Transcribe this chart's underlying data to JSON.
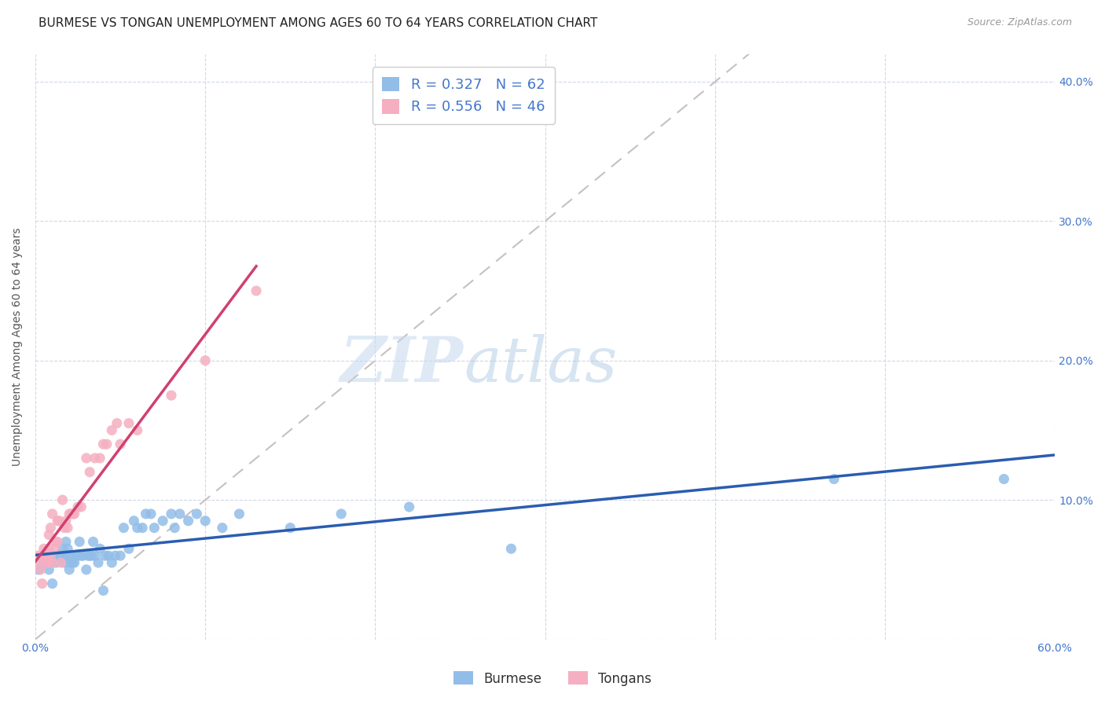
{
  "title": "BURMESE VS TONGAN UNEMPLOYMENT AMONG AGES 60 TO 64 YEARS CORRELATION CHART",
  "source": "Source: ZipAtlas.com",
  "ylabel": "Unemployment Among Ages 60 to 64 years",
  "xlim": [
    0.0,
    0.6
  ],
  "ylim": [
    0.0,
    0.42
  ],
  "xticks": [
    0.0,
    0.1,
    0.2,
    0.3,
    0.4,
    0.5,
    0.6
  ],
  "xticklabels": [
    "0.0%",
    "",
    "",
    "",
    "",
    "",
    "60.0%"
  ],
  "yticks": [
    0.0,
    0.1,
    0.2,
    0.3,
    0.4
  ],
  "yticklabels_right": [
    "",
    "10.0%",
    "20.0%",
    "30.0%",
    "40.0%"
  ],
  "burmese_color": "#92bde8",
  "tongan_color": "#f5afc0",
  "burmese_line_color": "#2a5db0",
  "tongan_line_color": "#d04070",
  "diagonal_color": "#c8c0c0",
  "R_burmese": 0.327,
  "N_burmese": 62,
  "R_tongan": 0.556,
  "N_tongan": 46,
  "watermark_zip": "ZIP",
  "watermark_atlas": "atlas",
  "burmese_x": [
    0.002,
    0.005,
    0.007,
    0.008,
    0.01,
    0.01,
    0.012,
    0.013,
    0.015,
    0.015,
    0.016,
    0.017,
    0.018,
    0.018,
    0.019,
    0.02,
    0.02,
    0.021,
    0.022,
    0.023,
    0.024,
    0.025,
    0.026,
    0.027,
    0.028,
    0.03,
    0.031,
    0.032,
    0.033,
    0.034,
    0.035,
    0.037,
    0.038,
    0.04,
    0.041,
    0.043,
    0.045,
    0.047,
    0.05,
    0.052,
    0.055,
    0.058,
    0.06,
    0.063,
    0.065,
    0.068,
    0.07,
    0.075,
    0.08,
    0.082,
    0.085,
    0.09,
    0.095,
    0.1,
    0.11,
    0.12,
    0.15,
    0.18,
    0.22,
    0.28,
    0.47,
    0.57
  ],
  "burmese_y": [
    0.05,
    0.055,
    0.06,
    0.05,
    0.04,
    0.06,
    0.055,
    0.06,
    0.06,
    0.06,
    0.065,
    0.055,
    0.06,
    0.07,
    0.065,
    0.05,
    0.06,
    0.055,
    0.055,
    0.055,
    0.06,
    0.06,
    0.07,
    0.06,
    0.06,
    0.05,
    0.06,
    0.06,
    0.06,
    0.07,
    0.06,
    0.055,
    0.065,
    0.035,
    0.06,
    0.06,
    0.055,
    0.06,
    0.06,
    0.08,
    0.065,
    0.085,
    0.08,
    0.08,
    0.09,
    0.09,
    0.08,
    0.085,
    0.09,
    0.08,
    0.09,
    0.085,
    0.09,
    0.085,
    0.08,
    0.09,
    0.08,
    0.09,
    0.095,
    0.065,
    0.115,
    0.115
  ],
  "tongan_x": [
    0.001,
    0.002,
    0.003,
    0.004,
    0.004,
    0.005,
    0.006,
    0.006,
    0.007,
    0.008,
    0.008,
    0.008,
    0.009,
    0.009,
    0.01,
    0.01,
    0.011,
    0.012,
    0.013,
    0.013,
    0.014,
    0.015,
    0.016,
    0.017,
    0.018,
    0.019,
    0.02,
    0.021,
    0.022,
    0.023,
    0.025,
    0.027,
    0.03,
    0.032,
    0.035,
    0.038,
    0.04,
    0.042,
    0.045,
    0.048,
    0.05,
    0.055,
    0.06,
    0.08,
    0.1,
    0.13
  ],
  "tongan_y": [
    0.055,
    0.06,
    0.05,
    0.04,
    0.06,
    0.065,
    0.055,
    0.06,
    0.06,
    0.055,
    0.065,
    0.075,
    0.06,
    0.08,
    0.055,
    0.09,
    0.065,
    0.07,
    0.07,
    0.085,
    0.085,
    0.055,
    0.1,
    0.08,
    0.085,
    0.08,
    0.09,
    0.09,
    0.09,
    0.09,
    0.095,
    0.095,
    0.13,
    0.12,
    0.13,
    0.13,
    0.14,
    0.14,
    0.15,
    0.155,
    0.14,
    0.155,
    0.15,
    0.175,
    0.2,
    0.25
  ],
  "background_color": "#ffffff",
  "grid_color": "#d0d8e8",
  "title_fontsize": 11,
  "label_fontsize": 10,
  "tick_fontsize": 10,
  "legend_fontsize": 12
}
